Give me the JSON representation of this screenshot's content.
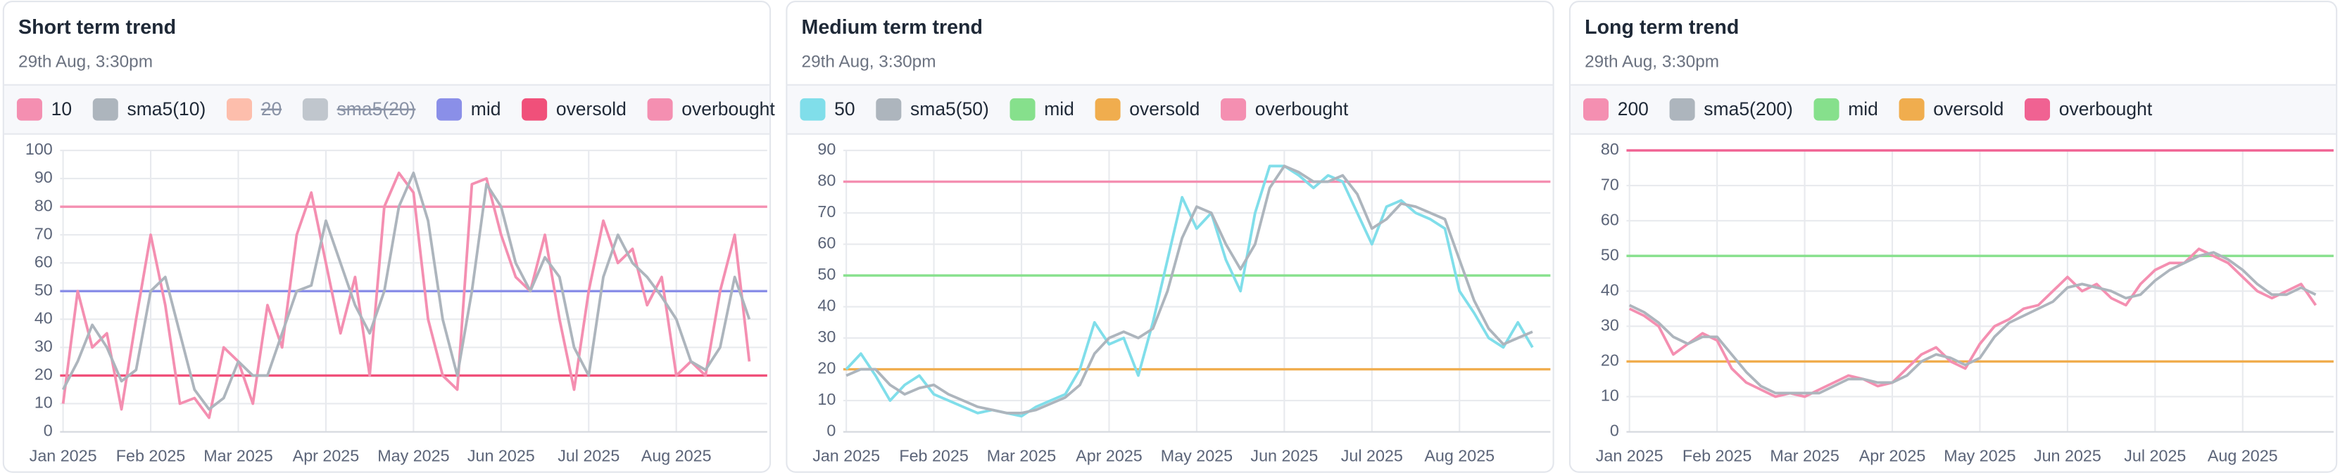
{
  "chart_data": [
    {
      "type": "line",
      "title": "Short term trend",
      "subtitle": "29th Aug, 3:30pm",
      "categories": [
        "Jan 2025",
        null,
        null,
        null,
        null,
        null,
        "Feb 2025",
        null,
        null,
        null,
        null,
        null,
        "Mar 2025",
        null,
        null,
        null,
        null,
        null,
        "Apr 2025",
        null,
        null,
        null,
        null,
        null,
        "May 2025",
        null,
        null,
        null,
        null,
        null,
        "Jun 2025",
        null,
        null,
        null,
        null,
        null,
        "Jul 2025",
        null,
        null,
        null,
        null,
        null,
        "Aug 2025",
        null,
        null,
        null,
        null,
        null
      ],
      "ylim": [
        0,
        100
      ],
      "yticks": [
        0,
        10,
        20,
        30,
        40,
        50,
        60,
        70,
        80,
        90,
        100
      ],
      "grid": true,
      "series": [
        {
          "name": "10",
          "color": "#f48fb1",
          "values": [
            10,
            50,
            30,
            35,
            8,
            40,
            70,
            45,
            10,
            12,
            5,
            30,
            25,
            10,
            45,
            30,
            70,
            85,
            60,
            35,
            55,
            20,
            80,
            92,
            85,
            40,
            20,
            15,
            88,
            90,
            70,
            55,
            50,
            70,
            40,
            15,
            50,
            75,
            60,
            65,
            45,
            55,
            20,
            25,
            20,
            50,
            70,
            25
          ]
        },
        {
          "name": "sma5(10)",
          "color": "#adb5bd",
          "values": [
            15,
            25,
            38,
            30,
            18,
            22,
            50,
            55,
            35,
            15,
            8,
            12,
            25,
            20,
            20,
            35,
            50,
            52,
            75,
            60,
            45,
            35,
            50,
            80,
            92,
            75,
            40,
            20,
            50,
            88,
            80,
            60,
            50,
            62,
            55,
            30,
            20,
            55,
            70,
            60,
            55,
            48,
            40,
            25,
            22,
            30,
            55,
            40
          ]
        },
        {
          "name": "20",
          "color": "#ffab91",
          "hidden": true
        },
        {
          "name": "sma5(20)",
          "color": "#adb5bd",
          "hidden": true
        },
        {
          "name": "mid",
          "color": "#8a8fe8",
          "level": 50
        },
        {
          "name": "oversold",
          "color": "#f0507a",
          "level": 20
        },
        {
          "name": "overbought",
          "color": "#f48fb1",
          "level": 80
        }
      ]
    },
    {
      "type": "line",
      "title": "Medium term trend",
      "subtitle": "29th Aug, 3:30pm",
      "categories": [
        "Jan 2025",
        null,
        null,
        null,
        null,
        null,
        "Feb 2025",
        null,
        null,
        null,
        null,
        null,
        "Mar 2025",
        null,
        null,
        null,
        null,
        null,
        "Apr 2025",
        null,
        null,
        null,
        null,
        null,
        "May 2025",
        null,
        null,
        null,
        null,
        null,
        "Jun 2025",
        null,
        null,
        null,
        null,
        null,
        "Jul 2025",
        null,
        null,
        null,
        null,
        null,
        "Aug 2025",
        null,
        null,
        null,
        null,
        null
      ],
      "ylim": [
        0,
        90
      ],
      "yticks": [
        0,
        10,
        20,
        30,
        40,
        50,
        60,
        70,
        80,
        90
      ],
      "grid": true,
      "series": [
        {
          "name": "50",
          "color": "#80deea",
          "values": [
            20,
            25,
            18,
            10,
            15,
            18,
            12,
            10,
            8,
            6,
            7,
            6,
            5,
            8,
            10,
            12,
            20,
            35,
            28,
            30,
            18,
            35,
            55,
            75,
            65,
            70,
            55,
            45,
            70,
            85,
            85,
            82,
            78,
            82,
            80,
            70,
            60,
            72,
            74,
            70,
            68,
            65,
            45,
            38,
            30,
            27,
            35,
            27
          ]
        },
        {
          "name": "sma5(50)",
          "color": "#adb5bd",
          "values": [
            18,
            20,
            20,
            15,
            12,
            14,
            15,
            12,
            10,
            8,
            7,
            6,
            6,
            7,
            9,
            11,
            15,
            25,
            30,
            32,
            30,
            33,
            45,
            62,
            72,
            70,
            60,
            52,
            60,
            78,
            85,
            83,
            80,
            80,
            82,
            76,
            65,
            68,
            73,
            72,
            70,
            68,
            55,
            42,
            33,
            28,
            30,
            32
          ]
        },
        {
          "name": "mid",
          "color": "#86e08c",
          "level": 50
        },
        {
          "name": "oversold",
          "color": "#f0ad4e",
          "level": 20
        },
        {
          "name": "overbought",
          "color": "#f48fb1",
          "level": 80
        }
      ]
    },
    {
      "type": "line",
      "title": "Long term trend",
      "subtitle": "29th Aug, 3:30pm",
      "categories": [
        "Jan 2025",
        null,
        null,
        null,
        null,
        null,
        "Feb 2025",
        null,
        null,
        null,
        null,
        null,
        "Mar 2025",
        null,
        null,
        null,
        null,
        null,
        "Apr 2025",
        null,
        null,
        null,
        null,
        null,
        "May 2025",
        null,
        null,
        null,
        null,
        null,
        "Jun 2025",
        null,
        null,
        null,
        null,
        null,
        "Jul 2025",
        null,
        null,
        null,
        null,
        null,
        "Aug 2025",
        null,
        null,
        null,
        null,
        null
      ],
      "ylim": [
        0,
        80
      ],
      "yticks": [
        0,
        10,
        20,
        30,
        40,
        50,
        60,
        70,
        80
      ],
      "grid": true,
      "series": [
        {
          "name": "200",
          "color": "#f48fb1",
          "values": [
            35,
            33,
            30,
            22,
            25,
            28,
            26,
            18,
            14,
            12,
            10,
            11,
            10,
            12,
            14,
            16,
            15,
            13,
            14,
            18,
            22,
            24,
            20,
            18,
            25,
            30,
            32,
            35,
            36,
            40,
            44,
            40,
            42,
            38,
            36,
            42,
            46,
            48,
            48,
            52,
            50,
            48,
            44,
            40,
            38,
            40,
            42,
            36
          ]
        },
        {
          "name": "sma5(200)",
          "color": "#adb5bd",
          "values": [
            36,
            34,
            31,
            27,
            25,
            27,
            27,
            22,
            17,
            13,
            11,
            11,
            11,
            11,
            13,
            15,
            15,
            14,
            14,
            16,
            20,
            22,
            21,
            19,
            21,
            27,
            31,
            33,
            35,
            37,
            41,
            42,
            41,
            40,
            38,
            39,
            43,
            46,
            48,
            50,
            51,
            49,
            46,
            42,
            39,
            39,
            41,
            39
          ]
        },
        {
          "name": "mid",
          "color": "#86e08c",
          "level": 50
        },
        {
          "name": "oversold",
          "color": "#f0ad4e",
          "level": 20
        },
        {
          "name": "overbought",
          "color": "#f06292",
          "level": 80
        }
      ]
    }
  ]
}
